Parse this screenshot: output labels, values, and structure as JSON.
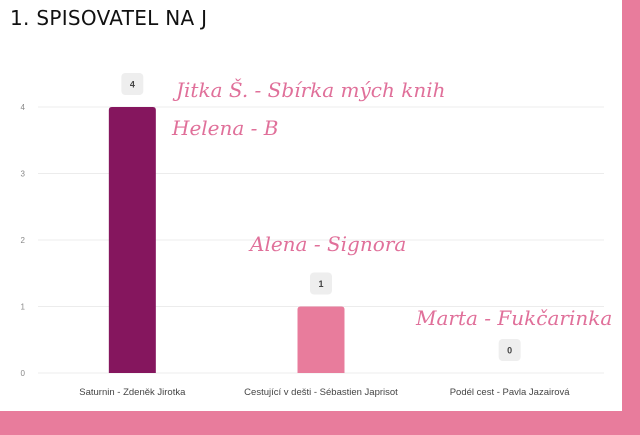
{
  "title": "1. SPISOVATEL NA J",
  "colors": {
    "background": "#e87c9c",
    "card": "#ffffff",
    "annotation": "#e0709a"
  },
  "chart_data": {
    "type": "bar",
    "categories": [
      "Saturnin - Zdeněk Jirotka",
      "Cestující v dešti - Sébastien Japrisot",
      "Podél cest - Pavla Jazairová"
    ],
    "values": [
      4,
      1,
      0
    ],
    "bar_colors": [
      "#85165e",
      "#e87c9c",
      "#e87c9c"
    ],
    "ylim": [
      0,
      4
    ],
    "yticks": [
      0,
      1,
      2,
      3,
      4
    ],
    "grid": true,
    "data_labels": true
  },
  "annotations": [
    {
      "text": "Jitka Š. - Sbírka mých knih"
    },
    {
      "text": "Helena - B"
    },
    {
      "text": "Alena - Signora"
    },
    {
      "text": "Marta - Fukčarinka"
    }
  ]
}
